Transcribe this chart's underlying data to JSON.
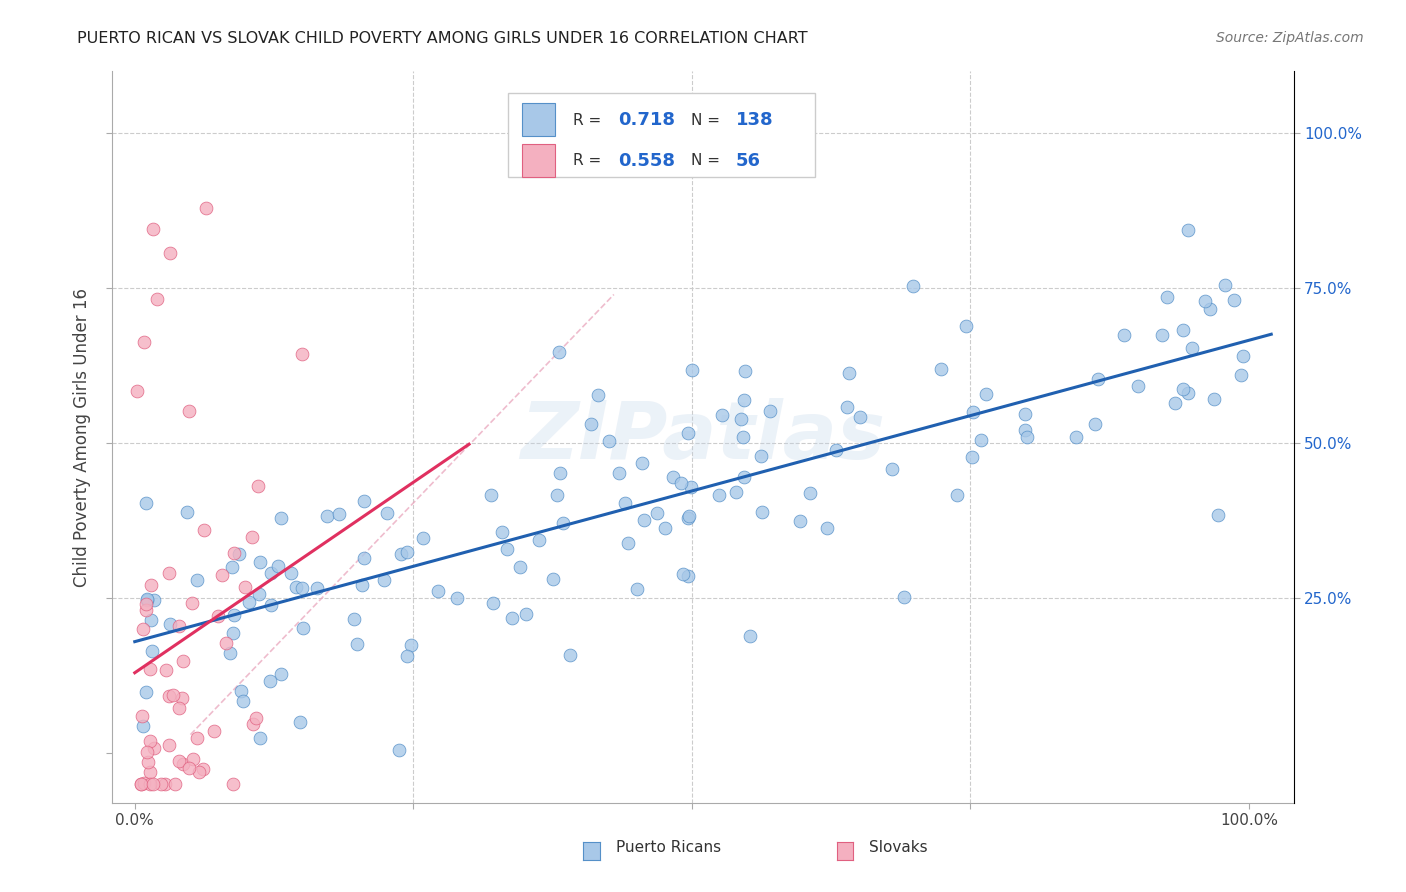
{
  "title": "PUERTO RICAN VS SLOVAK CHILD POVERTY AMONG GIRLS UNDER 16 CORRELATION CHART",
  "source": "Source: ZipAtlas.com",
  "ylabel": "Child Poverty Among Girls Under 16",
  "blue_R": 0.718,
  "blue_N": 138,
  "pink_R": 0.558,
  "pink_N": 56,
  "blue_color": "#a8c8e8",
  "pink_color": "#f4b0c0",
  "blue_edge_color": "#5590c8",
  "pink_edge_color": "#e06080",
  "blue_line_color": "#2060b0",
  "pink_line_color": "#e03060",
  "axis_label_color": "#2266cc",
  "right_tick_color": "#2266cc",
  "watermark_text": "ZIPatlas",
  "legend_blue_label": "Puerto Ricans",
  "legend_pink_label": "Slovaks",
  "xlim": [
    -0.02,
    1.04
  ],
  "ylim": [
    -0.08,
    1.1
  ]
}
